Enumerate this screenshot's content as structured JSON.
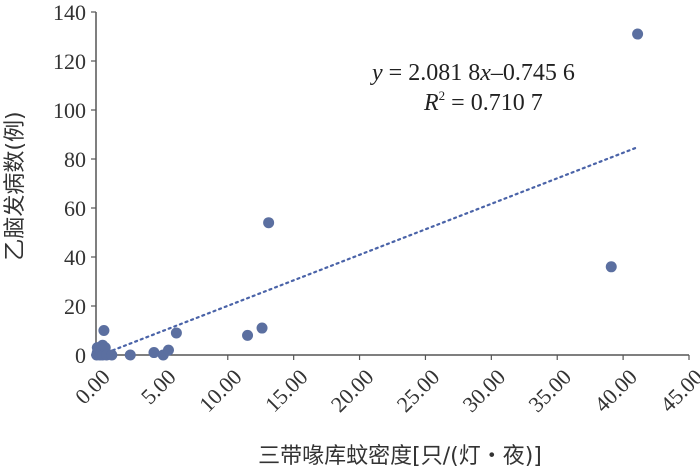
{
  "chart_data": {
    "type": "scatter",
    "xlabel": "三带喙库蚊密度[只/(灯・夜)]",
    "ylabel": "乙脑发病数(例)",
    "xlim": [
      0,
      45
    ],
    "ylim": [
      0,
      140
    ],
    "x_ticks": [
      "0.00",
      "5.00",
      "10.00",
      "15.00",
      "20.00",
      "25.00",
      "30.00",
      "35.00",
      "40.00",
      "45.00"
    ],
    "y_ticks": [
      "0",
      "20",
      "40",
      "60",
      "80",
      "100",
      "120",
      "140"
    ],
    "grid": false,
    "marker_color": "#5b6fa0",
    "trendline_color": "#4a63a8",
    "series": [
      {
        "points": [
          [
            0.05,
            0
          ],
          [
            0.1,
            1
          ],
          [
            0.1,
            3
          ],
          [
            0.2,
            2
          ],
          [
            0.3,
            0
          ],
          [
            0.4,
            1
          ],
          [
            0.5,
            0
          ],
          [
            0.5,
            4
          ],
          [
            0.6,
            10
          ],
          [
            0.7,
            3
          ],
          [
            0.8,
            0
          ],
          [
            1.2,
            0
          ],
          [
            2.6,
            0
          ],
          [
            4.4,
            1
          ],
          [
            5.1,
            0
          ],
          [
            5.5,
            2
          ],
          [
            6.1,
            9
          ],
          [
            11.5,
            8
          ],
          [
            12.6,
            11
          ],
          [
            13.1,
            54
          ],
          [
            39.1,
            36
          ],
          [
            41.1,
            131
          ]
        ]
      }
    ],
    "trendline": {
      "type": "linear",
      "slope": 2.0818,
      "intercept": -0.7456,
      "x_range": [
        0,
        41.1
      ]
    },
    "annotation": {
      "equation": {
        "y": "y",
        "eq": " = 2.081 8",
        "x": "x",
        "rest": "–0.745 6"
      },
      "r2": {
        "R": "R",
        "sup": "2",
        "rest": " = 0.710 7"
      }
    }
  }
}
